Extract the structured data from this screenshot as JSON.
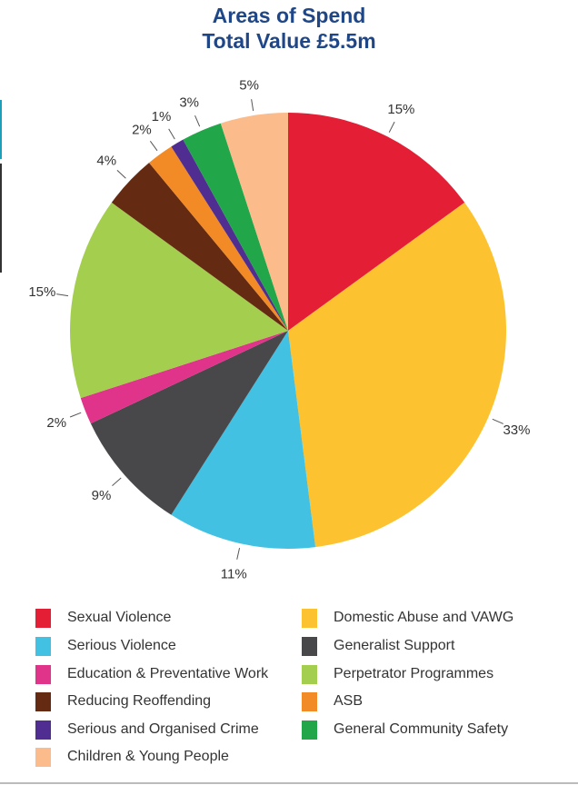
{
  "chart_data": {
    "type": "pie",
    "title": "Areas of Spend",
    "subtitle": "Total Value £5.5m",
    "start_angle": "top",
    "direction": "clockwise",
    "legend_position": "bottom",
    "slices": [
      {
        "name": "Sexual Violence",
        "value": 15,
        "label": "15%",
        "color": "#e31e35"
      },
      {
        "name": "Domestic Abuse and VAWG",
        "value": 33,
        "label": "33%",
        "color": "#fdc22f"
      },
      {
        "name": "Serious Violence",
        "value": 11,
        "label": "11%",
        "color": "#43c1e2"
      },
      {
        "name": "Generalist Support",
        "value": 9,
        "label": "9%",
        "color": "#48484a"
      },
      {
        "name": "Education & Preventative Work",
        "value": 2,
        "label": "2%",
        "color": "#e0338a"
      },
      {
        "name": "Perpetrator Programmes",
        "value": 15,
        "label": "15%",
        "color": "#a4ce4e"
      },
      {
        "name": "Reducing Reoffending",
        "value": 4,
        "label": "4%",
        "color": "#652a12"
      },
      {
        "name": "ASB",
        "value": 2,
        "label": "2%",
        "color": "#f28a25"
      },
      {
        "name": "Serious and Organised Crime",
        "value": 1,
        "label": "1%",
        "color": "#4f2d91"
      },
      {
        "name": "General Community Safety",
        "value": 3,
        "label": "3%",
        "color": "#21a64a"
      },
      {
        "name": "Children & Young People",
        "value": 5,
        "label": "5%",
        "color": "#fbbb8a"
      }
    ],
    "legend_order": [
      "Sexual Violence",
      "Domestic Abuse and VAWG",
      "Serious Violence",
      "Generalist Support",
      "Education & Preventative Work",
      "Perpetrator Programmes",
      "Reducing Reoffending",
      "ASB",
      "Serious and Organised Crime",
      "General Community Safety",
      "Children & Young People"
    ]
  }
}
